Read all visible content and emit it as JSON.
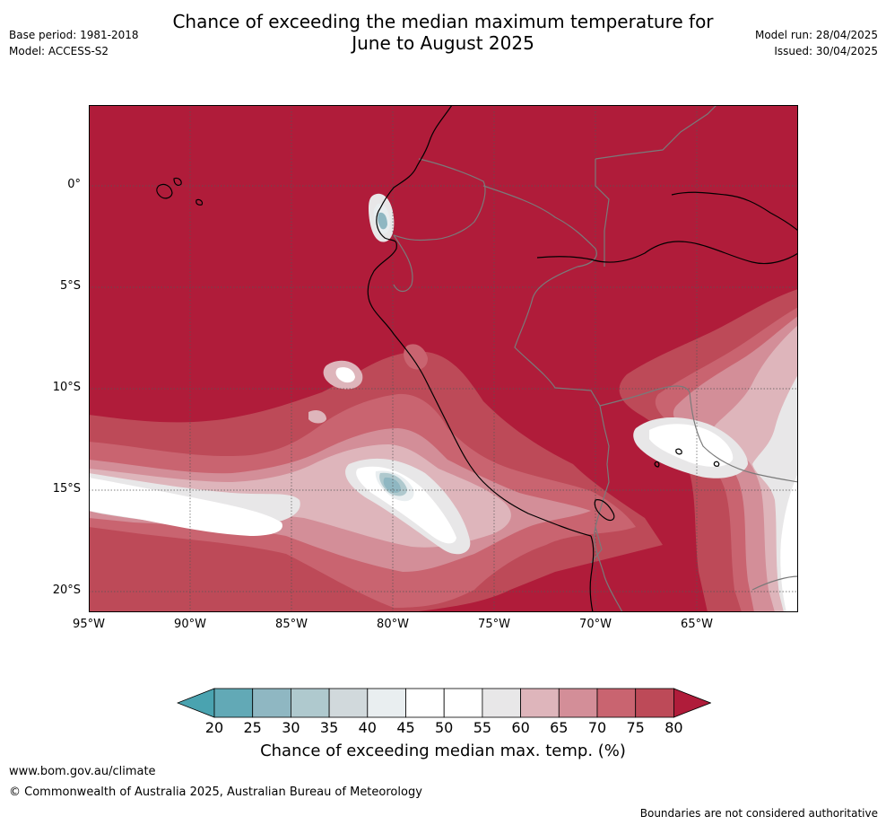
{
  "title": {
    "line1": "Chance of exceeding the median maximum temperature for",
    "line2": "June to August 2025"
  },
  "meta_left": {
    "base_period": "Base period: 1981-2018",
    "model": "Model: ACCESS-S2"
  },
  "meta_right": {
    "model_run": "Model run: 28/04/2025",
    "issued": "Issued: 30/04/2025"
  },
  "map": {
    "lat_labels": [
      "0°",
      "5°S",
      "10°S",
      "15°S",
      "20°S"
    ],
    "lon_labels": [
      "95°W",
      "90°W",
      "85°W",
      "80°W",
      "75°W",
      "70°W",
      "65°W"
    ]
  },
  "colorbar": {
    "ticks": [
      "20",
      "25",
      "30",
      "35",
      "40",
      "45",
      "50",
      "55",
      "60",
      "65",
      "70",
      "75",
      "80"
    ],
    "colors": [
      "#62a9b6",
      "#8fb7c2",
      "#afc9ce",
      "#d1d9dc",
      "#e9eef0",
      "#ffffff",
      "#ffffff",
      "#e8e7e8",
      "#deb5bb",
      "#d38e98",
      "#c96470",
      "#bd4a58"
    ],
    "under_color": "#4aa3b0",
    "over_color": "#b01c3a",
    "label": "Chance of exceeding median max. temp. (%)"
  },
  "footer": {
    "url": "www.bom.gov.au/climate",
    "copyright": "© Commonwealth of Australia 2025, Australian Bureau of Meteorology",
    "disclaimer": "Boundaries are not considered authoritative"
  }
}
